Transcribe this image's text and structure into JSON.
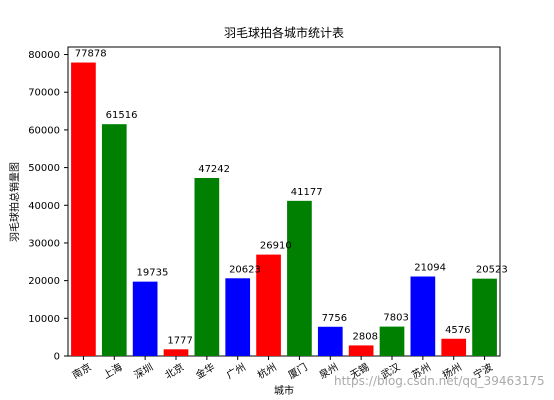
{
  "chart_data": {
    "type": "bar",
    "title": "羽毛球拍各城市统计表",
    "xlabel": "城市",
    "ylabel": "羽毛球拍总销量图",
    "categories": [
      "南京",
      "上海",
      "深圳",
      "北京",
      "金华",
      "广州",
      "杭州",
      "厦门",
      "泉州",
      "无锡",
      "武汉",
      "苏州",
      "扬州",
      "宁波"
    ],
    "values": [
      77878,
      61516,
      19735,
      1777,
      47242,
      20623,
      26910,
      41177,
      7756,
      2808,
      7803,
      21094,
      4576,
      20523
    ],
    "bar_colors": [
      "#ff0000",
      "#008000",
      "#0000ff",
      "#ff0000",
      "#008000",
      "#0000ff",
      "#ff0000",
      "#008000",
      "#0000ff",
      "#ff0000",
      "#008000",
      "#0000ff",
      "#ff0000",
      "#008000"
    ],
    "ylim": [
      0,
      82000
    ],
    "yticks": [
      0,
      10000,
      20000,
      30000,
      40000,
      50000,
      60000,
      70000,
      80000
    ],
    "ytick_labels": [
      "0",
      "10000",
      "20000",
      "30000",
      "40000",
      "50000",
      "60000",
      "70000",
      "80000"
    ],
    "grid": false,
    "legend": "none"
  },
  "watermark": "https://blog.csdn.net/qq_39463175"
}
